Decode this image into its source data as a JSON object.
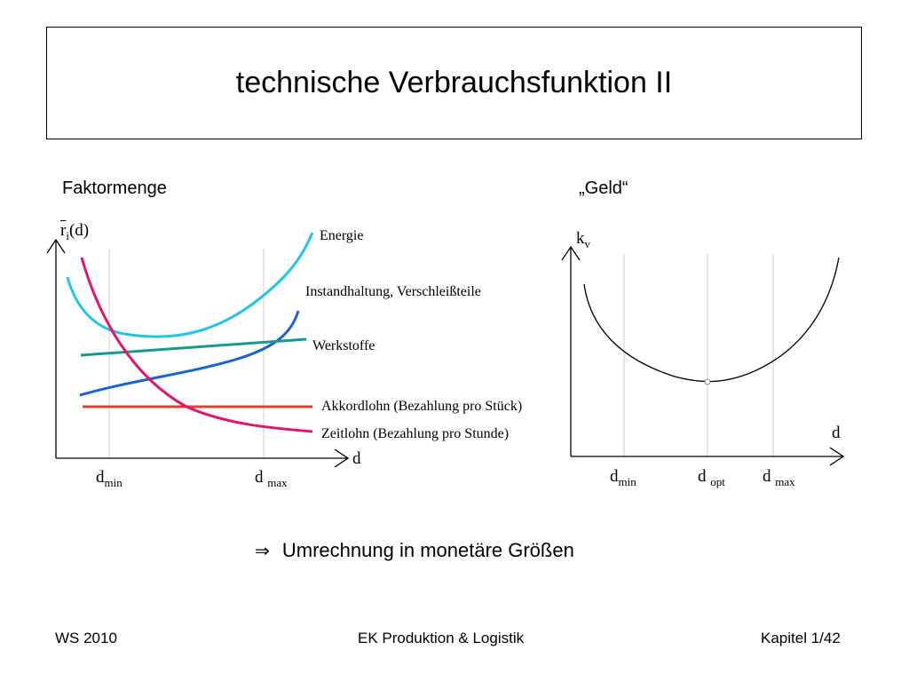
{
  "title": "technische Verbrauchsfunktion II",
  "left_chart": {
    "heading": "Faktormenge",
    "y_label_main": "r",
    "y_label_sub": "i",
    "y_label_tail": "(d)",
    "x_label": "d",
    "dmin_main": "d",
    "dmin_sub": "min",
    "dmax_main": "d",
    "dmax_sub": "max",
    "series": [
      {
        "name": "Energie",
        "color": "#22c4ea"
      },
      {
        "name": "Instandhaltung, Verschleißteile",
        "color": "#1565d8"
      },
      {
        "name": "Werkstoffe",
        "color": "#159a93"
      },
      {
        "name": "Akkordlohn (Bezahlung pro Stück)",
        "color": "#e8401c"
      },
      {
        "name": "Zeitlohn (Bezahlung pro Stunde)",
        "color": "#e3136f"
      }
    ]
  },
  "right_chart": {
    "heading": "„Geld“",
    "y_label_main": "k",
    "y_label_sub": "v",
    "x_label": "d",
    "dmin_main": "d",
    "dmin_sub": "min",
    "dopt_main": "d",
    "dopt_sub": "opt",
    "dmax_main": "d",
    "dmax_sub": "max"
  },
  "conclusion": {
    "arrow": "⇒",
    "text": "Umrechnung in monetäre Größen"
  },
  "footer": {
    "left": "WS 2010",
    "center": "EK Produktion & Logistik",
    "right": "Kapitel 1/42"
  }
}
